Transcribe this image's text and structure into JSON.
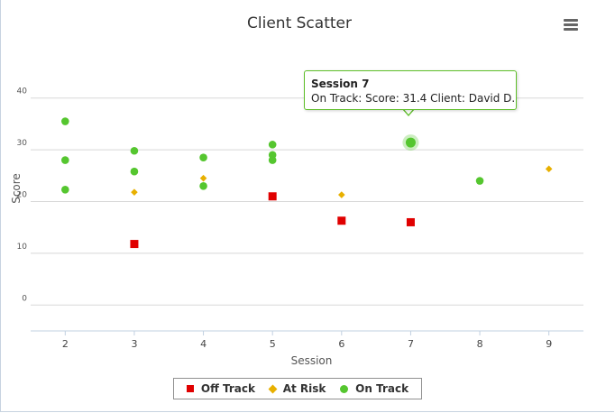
{
  "chart_data": {
    "type": "scatter",
    "title": "Client Scatter",
    "xlabel": "Session",
    "ylabel": "Score",
    "xlim": [
      1.5,
      9.5
    ],
    "ylim": [
      -5,
      45
    ],
    "x_ticks": [
      2,
      3,
      4,
      5,
      6,
      7,
      8,
      9
    ],
    "y_ticks": [
      0,
      10,
      20,
      30,
      40
    ],
    "grid": true,
    "legend_position": "bottom-center",
    "series": [
      {
        "name": "Off Track",
        "color": "#e00000",
        "marker": "square",
        "points": [
          [
            3,
            11.8
          ],
          [
            5,
            21.0
          ],
          [
            6,
            16.3
          ],
          [
            7,
            16.0
          ]
        ]
      },
      {
        "name": "At Risk",
        "color": "#e8b000",
        "marker": "diamond",
        "points": [
          [
            3,
            21.8
          ],
          [
            4,
            24.5
          ],
          [
            6,
            21.3
          ],
          [
            9,
            26.3
          ]
        ]
      },
      {
        "name": "On Track",
        "color": "#55c62f",
        "marker": "circle",
        "points": [
          [
            2,
            35.5
          ],
          [
            2,
            28.0
          ],
          [
            2,
            22.3
          ],
          [
            3,
            29.8
          ],
          [
            3,
            25.8
          ],
          [
            4,
            28.5
          ],
          [
            4,
            23.0
          ],
          [
            5,
            31.0
          ],
          [
            5,
            29.0
          ],
          [
            5,
            28.0
          ],
          [
            7,
            31.4
          ],
          [
            8,
            24.0
          ]
        ]
      }
    ]
  },
  "tooltip": {
    "title": "Session 7",
    "line": "On Track: Score: 31.4 Client: David D.",
    "border_color": "#5fbf2a"
  },
  "legend": {
    "items": [
      {
        "label": "Off Track",
        "icon": "red-square"
      },
      {
        "label": "At Risk",
        "icon": "orange-diamond"
      },
      {
        "label": "On Track",
        "icon": "green-circle"
      }
    ]
  },
  "menu_icon": "hamburger-menu-icon"
}
